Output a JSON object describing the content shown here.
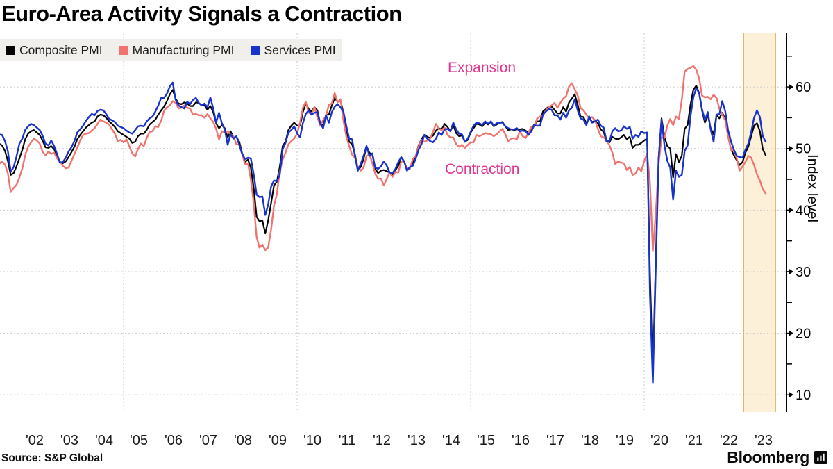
{
  "header": {
    "title": "Euro-Area Activity Signals a Contraction"
  },
  "legend": {
    "items": [
      {
        "label": "Composite PMI",
        "color": "#000000"
      },
      {
        "label": "Manufacturing PMI",
        "color": "#f0736e"
      },
      {
        "label": "Services PMI",
        "color": "#1733cc"
      }
    ]
  },
  "footer": {
    "source": "Source: S&P Global",
    "brand": "Bloomberg"
  },
  "chart_data": {
    "type": "line",
    "title": "Euro-Area Activity Signals a Contraction",
    "ylabel": "Index level",
    "frequency": "monthly",
    "start": {
      "year": 2001,
      "month": 6
    },
    "end": {
      "year": 2023,
      "month": 7
    },
    "xlim": [
      2001.44,
      2024.1
    ],
    "ylim": [
      7.2,
      68.7
    ],
    "grid": "on",
    "legend_position": "top-left",
    "y_ticks": [
      10,
      20,
      30,
      40,
      50,
      60
    ],
    "y_minor_ticks": [
      15,
      25,
      35,
      45,
      55,
      65
    ],
    "x_tick_years": [
      2002,
      2003,
      2004,
      2005,
      2006,
      2007,
      2008,
      2009,
      2010,
      2011,
      2012,
      2013,
      2014,
      2015,
      2016,
      2017,
      2018,
      2019,
      2020,
      2021,
      2022,
      2023
    ],
    "x_tick_labels": [
      "'02",
      "'03",
      "'04",
      "'05",
      "'06",
      "'07",
      "'08",
      "'09",
      "'10",
      "'11",
      "'12",
      "'13",
      "'14",
      "'15",
      "'16",
      "'17",
      "'18",
      "'19",
      "'20",
      "'21",
      "'22",
      "'23"
    ],
    "v_gridline_years": [
      2005,
      2010,
      2015,
      2020
    ],
    "gridline_color": "#c9c9c9",
    "highlight_band": {
      "from": 2022.86,
      "to": 2023.78,
      "fill": "#fdf0d9",
      "border": "#dca84f"
    },
    "annotations": [
      {
        "text": "Expansion",
        "color": "#e0358f",
        "x": 2015.2,
        "y": 62.8
      },
      {
        "text": "Contraction",
        "color": "#e0358f",
        "x": 2015.3,
        "y": 46.2
      }
    ],
    "series": [
      {
        "name": "Composite PMI",
        "color": "#000000",
        "width": 2.2,
        "values": [
          50.8,
          50.5,
          49.6,
          48.0,
          45.7,
          46.0,
          47.1,
          48.4,
          49.8,
          51.5,
          52.4,
          52.8,
          53.0,
          52.6,
          52.2,
          51.3,
          50.2,
          50.1,
          50.4,
          49.9,
          48.8,
          47.7,
          47.6,
          47.9,
          48.6,
          49.4,
          50.3,
          51.5,
          52.2,
          52.8,
          53.4,
          53.8,
          54.2,
          54.4,
          55.2,
          55.5,
          55.4,
          55.0,
          54.4,
          54.0,
          53.5,
          52.8,
          52.5,
          52.2,
          51.9,
          51.6,
          50.9,
          51.1,
          52.0,
          52.4,
          52.4,
          53.0,
          53.9,
          54.3,
          54.7,
          55.5,
          56.2,
          56.8,
          57.7,
          58.8,
          59.5,
          58.1,
          57.3,
          57.2,
          57.5,
          57.3,
          56.9,
          56.9,
          57.5,
          57.4,
          57.0,
          57.0,
          56.3,
          56.9,
          55.9,
          54.1,
          53.3,
          53.8,
          53.3,
          51.8,
          52.8,
          51.8,
          51.9,
          51.1,
          49.3,
          47.8,
          48.2,
          46.9,
          43.6,
          38.9,
          38.2,
          38.3,
          36.2,
          38.3,
          41.1,
          44.0,
          44.6,
          47.0,
          50.4,
          51.1,
          53.0,
          53.7,
          54.2,
          53.7,
          53.7,
          55.9,
          57.3,
          56.4,
          56.0,
          56.7,
          56.2,
          54.1,
          53.8,
          55.5,
          55.5,
          57.0,
          58.2,
          57.6,
          57.8,
          55.8,
          53.3,
          51.1,
          50.7,
          49.1,
          46.5,
          47.0,
          48.3,
          50.4,
          49.3,
          49.1,
          46.7,
          46.0,
          46.4,
          46.5,
          46.3,
          46.1,
          45.7,
          46.5,
          47.2,
          48.6,
          47.9,
          46.5,
          46.9,
          47.7,
          48.7,
          50.5,
          51.5,
          52.2,
          51.9,
          51.7,
          52.1,
          52.9,
          53.3,
          53.1,
          54.0,
          53.5,
          52.8,
          53.8,
          52.5,
          52.0,
          52.1,
          51.1,
          51.4,
          52.6,
          53.3,
          54.0,
          53.9,
          53.6,
          54.2,
          53.9,
          54.3,
          53.6,
          53.9,
          54.2,
          54.3,
          53.6,
          53.0,
          53.1,
          53.0,
          53.1,
          53.1,
          53.2,
          52.9,
          52.6,
          53.3,
          53.9,
          54.4,
          54.4,
          56.0,
          56.4,
          56.8,
          56.8,
          56.3,
          55.7,
          55.7,
          56.7,
          56.0,
          57.5,
          58.1,
          58.8,
          57.1,
          55.2,
          55.1,
          54.1,
          54.9,
          54.3,
          54.5,
          54.1,
          53.1,
          52.7,
          51.1,
          51.0,
          51.9,
          51.6,
          51.5,
          51.8,
          52.2,
          51.5,
          51.9,
          50.1,
          50.6,
          50.6,
          50.9,
          51.3,
          51.6,
          29.7,
          13.6,
          31.9,
          48.5,
          54.9,
          51.9,
          50.4,
          50.0,
          45.3,
          49.1,
          47.8,
          48.8,
          53.2,
          53.8,
          57.1,
          59.5,
          60.2,
          59.0,
          56.2,
          54.2,
          55.4,
          53.3,
          52.3,
          55.5,
          54.9,
          55.8,
          54.8,
          52.0,
          49.9,
          48.9,
          48.1,
          47.3,
          47.8,
          49.3,
          50.3,
          52.0,
          53.7,
          54.1,
          52.8,
          49.9,
          48.9
        ]
      },
      {
        "name": "Manufacturing PMI",
        "color": "#f0736e",
        "width": 2.4,
        "values": [
          47.5,
          47.9,
          47.4,
          46.0,
          42.9,
          43.6,
          44.1,
          45.3,
          46.8,
          48.9,
          50.3,
          51.0,
          51.6,
          51.3,
          50.8,
          49.5,
          48.9,
          49.5,
          49.1,
          49.3,
          48.4,
          47.9,
          47.2,
          46.8,
          46.9,
          48.0,
          49.1,
          50.1,
          51.3,
          52.2,
          52.4,
          52.5,
          52.9,
          53.3,
          54.0,
          54.7,
          54.4,
          54.2,
          53.9,
          53.1,
          52.4,
          51.2,
          51.4,
          51.0,
          51.5,
          50.4,
          49.2,
          48.7,
          49.9,
          50.8,
          50.4,
          51.7,
          52.7,
          52.8,
          53.6,
          53.5,
          54.5,
          56.1,
          56.7,
          57.0,
          57.7,
          57.4,
          56.5,
          56.6,
          57.0,
          56.6,
          56.5,
          55.5,
          55.6,
          55.4,
          55.4,
          55.0,
          55.6,
          54.9,
          54.3,
          53.2,
          51.5,
          52.8,
          52.6,
          52.8,
          52.3,
          52.0,
          50.7,
          50.6,
          49.2,
          47.4,
          47.6,
          45.0,
          41.1,
          35.6,
          33.9,
          34.4,
          33.5,
          33.9,
          36.8,
          40.7,
          42.6,
          46.3,
          48.2,
          49.3,
          50.7,
          51.2,
          51.6,
          52.4,
          54.2,
          56.6,
          57.6,
          55.8,
          55.6,
          56.7,
          55.1,
          53.7,
          54.6,
          55.3,
          57.1,
          57.3,
          59.0,
          57.5,
          58.0,
          54.6,
          52.0,
          50.4,
          49.0,
          48.5,
          47.1,
          46.4,
          46.9,
          48.8,
          49.0,
          47.7,
          45.9,
          45.1,
          45.1,
          44.0,
          45.1,
          46.1,
          45.4,
          46.2,
          46.1,
          47.9,
          47.9,
          46.8,
          46.7,
          48.3,
          48.8,
          50.3,
          51.4,
          51.1,
          51.3,
          51.6,
          52.7,
          54.0,
          53.2,
          53.0,
          53.4,
          52.2,
          51.8,
          51.8,
          50.7,
          50.3,
          50.6,
          50.1,
          50.6,
          51.0,
          51.0,
          52.2,
          52.0,
          52.2,
          52.5,
          52.4,
          52.3,
          52.0,
          52.3,
          52.8,
          53.2,
          52.3,
          51.2,
          51.6,
          51.7,
          51.5,
          52.8,
          52.0,
          51.7,
          52.6,
          53.5,
          53.7,
          54.9,
          55.2,
          55.4,
          56.2,
          56.7,
          57.0,
          57.4,
          56.6,
          57.4,
          58.1,
          58.5,
          60.1,
          60.6,
          59.6,
          58.6,
          56.6,
          56.2,
          55.5,
          54.9,
          55.1,
          54.6,
          53.2,
          52.0,
          51.8,
          51.4,
          50.5,
          49.3,
          47.5,
          47.9,
          47.7,
          47.6,
          46.5,
          47.0,
          45.7,
          45.9,
          46.9,
          46.3,
          47.9,
          49.2,
          44.5,
          33.4,
          39.4,
          47.4,
          51.8,
          51.7,
          53.7,
          54.8,
          53.8,
          55.2,
          54.8,
          57.9,
          62.5,
          62.9,
          63.1,
          63.4,
          62.8,
          61.4,
          58.6,
          58.3,
          58.4,
          58.0,
          58.7,
          58.2,
          56.5,
          55.5,
          54.6,
          52.1,
          49.8,
          49.6,
          48.4,
          46.4,
          47.1,
          47.8,
          48.8,
          48.5,
          47.3,
          45.8,
          44.8,
          43.4,
          42.7
        ]
      },
      {
        "name": "Services PMI",
        "color": "#1733cc",
        "width": 2.4,
        "values": [
          52.3,
          52.2,
          51.2,
          49.6,
          46.2,
          47.0,
          48.7,
          50.8,
          51.6,
          53.0,
          53.6,
          54.0,
          53.8,
          53.4,
          53.0,
          52.1,
          50.8,
          50.5,
          51.3,
          50.4,
          49.1,
          47.7,
          47.8,
          48.5,
          49.5,
          50.2,
          51.2,
          52.6,
          53.1,
          53.7,
          54.5,
          55.1,
          55.6,
          55.4,
          56.1,
          56.3,
          56.2,
          55.6,
          54.8,
          54.6,
          54.3,
          53.7,
          53.5,
          53.3,
          52.9,
          52.6,
          52.4,
          53.0,
          53.6,
          53.7,
          53.6,
          54.4,
          54.9,
          55.2,
          56.0,
          57.0,
          58.2,
          58.2,
          58.9,
          60.1,
          60.7,
          57.9,
          57.0,
          56.7,
          56.5,
          57.6,
          57.2,
          57.9,
          58.2,
          57.4,
          57.0,
          57.3,
          56.7,
          58.3,
          56.5,
          54.2,
          55.8,
          54.1,
          53.1,
          50.6,
          52.3,
          51.6,
          52.0,
          50.6,
          49.1,
          48.3,
          48.5,
          48.4,
          45.8,
          42.5,
          42.1,
          42.2,
          39.2,
          40.9,
          43.8,
          44.8,
          44.7,
          45.7,
          49.9,
          50.9,
          52.6,
          53.0,
          53.6,
          52.5,
          51.8,
          54.1,
          55.6,
          56.2,
          55.5,
          55.8,
          55.9,
          54.1,
          53.3,
          55.4,
          54.2,
          55.9,
          56.8,
          57.2,
          56.7,
          56.0,
          53.7,
          51.6,
          51.5,
          48.8,
          46.4,
          47.5,
          48.8,
          50.4,
          48.8,
          49.2,
          46.9,
          46.7,
          47.1,
          47.9,
          47.2,
          46.1,
          46.0,
          46.7,
          47.8,
          48.6,
          47.9,
          46.4,
          47.0,
          47.2,
          48.3,
          49.8,
          50.7,
          52.2,
          51.6,
          51.2,
          51.0,
          51.6,
          52.6,
          52.2,
          53.1,
          53.2,
          52.8,
          54.2,
          53.1,
          52.4,
          52.3,
          51.1,
          51.6,
          52.7,
          53.7,
          54.2,
          54.1,
          53.8,
          54.4,
          54.0,
          54.4,
          53.7,
          54.1,
          54.2,
          54.2,
          53.6,
          53.3,
          53.1,
          53.1,
          53.3,
          52.8,
          52.9,
          52.8,
          52.2,
          52.8,
          53.8,
          53.7,
          53.7,
          55.5,
          56.0,
          56.4,
          56.3,
          55.4,
          55.4,
          54.7,
          55.8,
          55.0,
          56.2,
          56.6,
          58.0,
          56.2,
          54.9,
          54.7,
          53.8,
          55.2,
          54.2,
          54.4,
          54.7,
          53.7,
          53.4,
          51.2,
          51.2,
          52.8,
          53.3,
          52.8,
          52.9,
          53.6,
          53.2,
          53.5,
          51.6,
          52.2,
          51.9,
          52.8,
          52.5,
          52.6,
          26.4,
          12.0,
          30.5,
          48.3,
          54.7,
          50.5,
          48.0,
          46.9,
          41.7,
          46.4,
          45.4,
          45.7,
          49.6,
          50.5,
          55.2,
          58.3,
          59.8,
          59.0,
          56.4,
          54.6,
          55.9,
          53.1,
          51.1,
          55.5,
          55.6,
          57.7,
          56.1,
          53.0,
          51.2,
          49.8,
          48.8,
          48.6,
          48.5,
          49.8,
          50.8,
          52.7,
          55.0,
          56.2,
          55.1,
          52.0,
          51.1
        ]
      }
    ]
  }
}
